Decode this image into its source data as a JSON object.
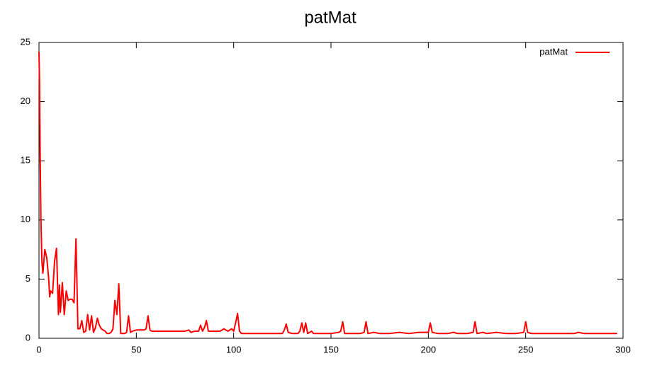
{
  "chart_data": {
    "type": "line",
    "title": "patMat",
    "x": [
      0,
      0.3,
      0.6,
      1,
      1.5,
      2,
      3,
      4,
      5,
      5.5,
      6,
      7,
      8,
      9,
      10,
      10.5,
      11,
      12,
      13,
      14,
      15,
      16,
      17,
      18,
      19,
      20,
      21,
      22,
      23,
      24,
      25,
      26,
      27,
      28,
      29,
      30,
      31,
      32,
      33,
      34,
      35,
      36,
      37,
      38,
      39,
      40,
      41,
      42,
      43,
      44,
      45,
      46,
      47,
      48,
      50,
      52,
      54,
      55,
      56,
      57,
      58,
      60,
      65,
      70,
      75,
      77,
      78,
      80,
      82,
      83,
      84,
      85,
      86,
      87,
      88,
      90,
      93,
      95,
      97,
      99,
      100,
      101,
      102,
      103,
      104,
      106,
      110,
      115,
      120,
      125,
      126,
      127,
      128,
      130,
      133,
      134,
      135,
      136,
      137,
      138,
      140,
      141,
      143,
      145,
      150,
      154,
      155,
      156,
      157,
      160,
      165,
      167,
      168,
      169,
      172,
      175,
      180,
      185,
      190,
      195,
      200,
      201,
      202,
      205,
      210,
      213,
      215,
      220,
      223,
      224,
      225,
      228,
      230,
      235,
      240,
      245,
      249,
      250,
      251,
      253,
      255,
      260,
      265,
      270,
      275,
      277,
      280,
      285,
      290,
      295,
      297
    ],
    "series": [
      {
        "name": "patMat",
        "color": "#ff0000",
        "values": [
          24.2,
          21.5,
          15.5,
          10,
          6.5,
          5.5,
          7.5,
          6.8,
          5,
          3.5,
          4,
          3.8,
          6.5,
          7.6,
          2,
          4.5,
          2.2,
          4.7,
          2,
          4,
          3.2,
          3.3,
          3.3,
          3,
          8.4,
          0.8,
          0.8,
          1.5,
          0.5,
          0.6,
          2,
          0.7,
          1.9,
          0.5,
          0.9,
          1.7,
          1.1,
          0.8,
          0.7,
          0.6,
          0.4,
          0.4,
          0.5,
          0.8,
          3.2,
          2,
          4.6,
          0.4,
          0.4,
          0.4,
          0.5,
          1.9,
          0.5,
          0.6,
          0.7,
          0.7,
          0.7,
          0.8,
          1.9,
          0.7,
          0.6,
          0.6,
          0.6,
          0.6,
          0.6,
          0.7,
          0.5,
          0.6,
          0.6,
          1.1,
          0.6,
          0.9,
          1.5,
          0.6,
          0.6,
          0.6,
          0.6,
          0.8,
          0.6,
          0.8,
          0.6,
          1.3,
          2.1,
          0.6,
          0.4,
          0.4,
          0.4,
          0.4,
          0.4,
          0.4,
          0.7,
          1.2,
          0.5,
          0.4,
          0.4,
          0.6,
          1.3,
          0.5,
          1.3,
          0.4,
          0.6,
          0.4,
          0.4,
          0.4,
          0.4,
          0.5,
          0.6,
          1.4,
          0.4,
          0.4,
          0.4,
          0.5,
          1.4,
          0.4,
          0.5,
          0.4,
          0.4,
          0.5,
          0.4,
          0.5,
          0.5,
          1.3,
          0.5,
          0.4,
          0.4,
          0.5,
          0.4,
          0.4,
          0.5,
          1.4,
          0.4,
          0.5,
          0.4,
          0.5,
          0.4,
          0.4,
          0.5,
          1.4,
          0.5,
          0.4,
          0.4,
          0.4,
          0.4,
          0.4,
          0.4,
          0.5,
          0.4,
          0.4,
          0.4,
          0.4,
          0.4
        ]
      }
    ],
    "xlim": [
      0,
      300
    ],
    "xticks": [
      0,
      50,
      100,
      150,
      200,
      250,
      300
    ],
    "ylim": [
      0,
      25
    ],
    "yticks": [
      0,
      5,
      10,
      15,
      20,
      25
    ],
    "legend": "top-right"
  }
}
